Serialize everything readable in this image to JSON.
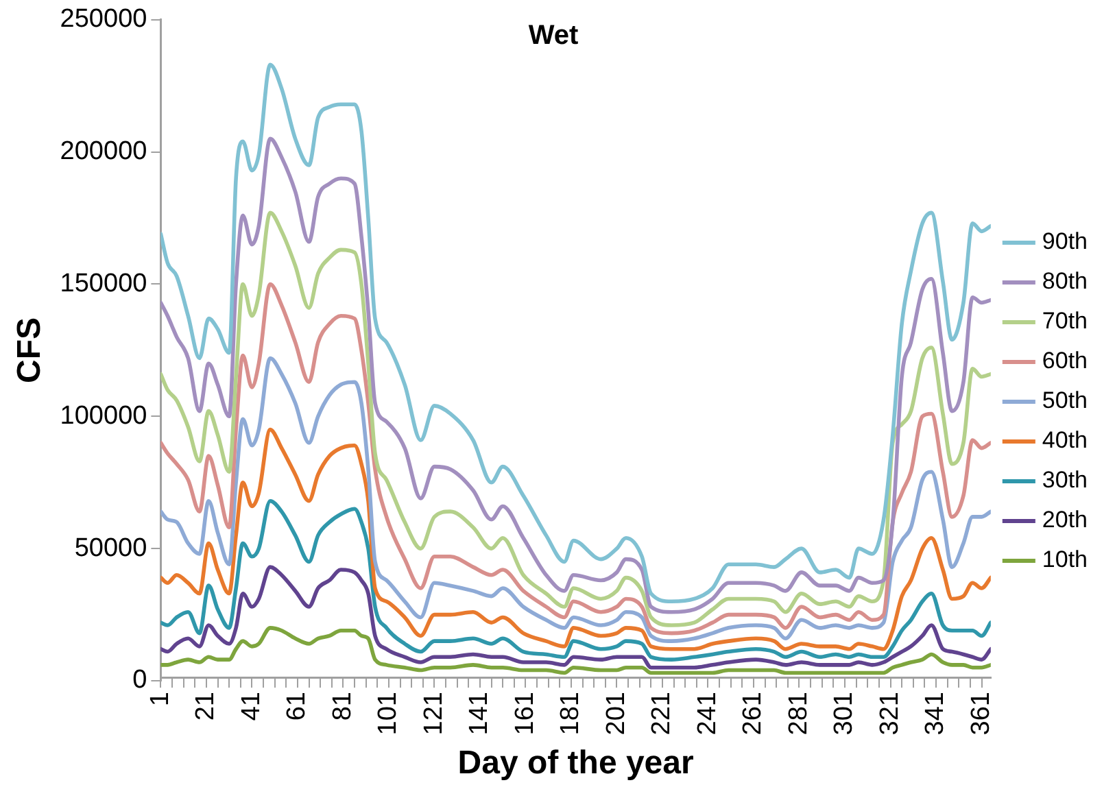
{
  "chart_data": {
    "type": "line",
    "title": "Wet",
    "xlabel": "Day of the year",
    "ylabel": "CFS",
    "x": [
      1,
      4,
      8,
      13,
      18,
      22,
      26,
      31,
      34,
      37,
      41,
      44,
      49,
      54,
      60,
      66,
      70,
      75,
      80,
      86,
      89,
      92,
      95,
      100,
      108,
      115,
      121,
      128,
      138,
      146,
      151,
      160,
      170,
      178,
      182,
      194,
      201,
      205,
      212,
      216,
      225,
      235,
      243,
      250,
      262,
      270,
      275,
      282,
      290,
      297,
      303,
      307,
      313,
      318,
      322,
      326,
      330,
      335,
      339,
      344,
      348,
      353,
      357,
      361,
      365
    ],
    "xlim": [
      1,
      365
    ],
    "xticks": [
      1,
      {
        "value": 6,
        "label": null
      },
      {
        "value": 11,
        "label": null
      },
      {
        "value": 16,
        "label": null
      },
      21,
      {
        "value": 26,
        "label": null
      },
      {
        "value": 31,
        "label": null
      },
      {
        "value": 36,
        "label": null
      },
      41,
      {
        "value": 46,
        "label": null
      },
      {
        "value": 51,
        "label": null
      },
      {
        "value": 56,
        "label": null
      },
      61,
      {
        "value": 66,
        "label": null
      },
      {
        "value": 71,
        "label": null
      },
      {
        "value": 76,
        "label": null
      },
      81,
      {
        "value": 86,
        "label": null
      },
      {
        "value": 91,
        "label": null
      },
      {
        "value": 96,
        "label": null
      },
      101,
      {
        "value": 106,
        "label": null
      },
      {
        "value": 111,
        "label": null
      },
      {
        "value": 116,
        "label": null
      },
      121,
      {
        "value": 126,
        "label": null
      },
      {
        "value": 131,
        "label": null
      },
      {
        "value": 136,
        "label": null
      },
      141,
      {
        "value": 146,
        "label": null
      },
      {
        "value": 151,
        "label": null
      },
      {
        "value": 156,
        "label": null
      },
      161,
      {
        "value": 166,
        "label": null
      },
      {
        "value": 171,
        "label": null
      },
      {
        "value": 176,
        "label": null
      },
      181,
      {
        "value": 186,
        "label": null
      },
      {
        "value": 191,
        "label": null
      },
      {
        "value": 196,
        "label": null
      },
      201,
      {
        "value": 206,
        "label": null
      },
      {
        "value": 211,
        "label": null
      },
      {
        "value": 216,
        "label": null
      },
      221,
      {
        "value": 226,
        "label": null
      },
      {
        "value": 231,
        "label": null
      },
      {
        "value": 236,
        "label": null
      },
      241,
      {
        "value": 246,
        "label": null
      },
      {
        "value": 251,
        "label": null
      },
      {
        "value": 256,
        "label": null
      },
      261,
      {
        "value": 266,
        "label": null
      },
      {
        "value": 271,
        "label": null
      },
      {
        "value": 276,
        "label": null
      },
      281,
      {
        "value": 286,
        "label": null
      },
      {
        "value": 291,
        "label": null
      },
      {
        "value": 296,
        "label": null
      },
      301,
      {
        "value": 306,
        "label": null
      },
      {
        "value": 311,
        "label": null
      },
      {
        "value": 316,
        "label": null
      },
      321,
      {
        "value": 326,
        "label": null
      },
      {
        "value": 331,
        "label": null
      },
      {
        "value": 336,
        "label": null
      },
      341,
      {
        "value": 346,
        "label": null
      },
      {
        "value": 351,
        "label": null
      },
      {
        "value": 356,
        "label": null
      },
      361
    ],
    "ylim": [
      0,
      250000
    ],
    "yticks": [
      0,
      50000,
      100000,
      150000,
      200000,
      250000
    ],
    "grid": false,
    "legend": "right",
    "line_style": "solid",
    "series": [
      {
        "name": "90th",
        "color": "#80c1d3",
        "values": [
          169000,
          158000,
          153000,
          138000,
          122000,
          137000,
          133000,
          124000,
          190000,
          204000,
          193000,
          199000,
          233000,
          224000,
          205000,
          195000,
          213000,
          217000,
          218000,
          218000,
          208000,
          175000,
          137000,
          128000,
          112000,
          91000,
          104000,
          101000,
          91000,
          75000,
          81000,
          70000,
          55000,
          45000,
          53000,
          46000,
          50000,
          54000,
          47000,
          33000,
          30000,
          31000,
          35000,
          44000,
          44000,
          43000,
          46000,
          50000,
          41000,
          42000,
          39000,
          50000,
          48000,
          61000,
          93000,
          135000,
          155000,
          173000,
          177000,
          151000,
          129000,
          143000,
          173000,
          170000,
          172000
        ]
      },
      {
        "name": "80th",
        "color": "#a28fbf",
        "values": [
          143000,
          138000,
          130000,
          122000,
          102000,
          120000,
          112000,
          100000,
          150000,
          176000,
          165000,
          172000,
          205000,
          198000,
          185000,
          166000,
          183000,
          188000,
          190000,
          188000,
          168000,
          140000,
          105000,
          98000,
          88000,
          69000,
          81000,
          80000,
          72000,
          61000,
          66000,
          54000,
          40000,
          34000,
          40000,
          38000,
          41000,
          46000,
          42000,
          28000,
          26000,
          27000,
          31000,
          37000,
          37000,
          36000,
          34000,
          41000,
          36000,
          36000,
          34000,
          39000,
          37000,
          38000,
          60000,
          115000,
          128000,
          148000,
          152000,
          124000,
          102000,
          113000,
          145000,
          143000,
          144000
        ]
      },
      {
        "name": "70th",
        "color": "#b4d08a",
        "values": [
          116000,
          110000,
          106000,
          96000,
          83000,
          102000,
          93000,
          79000,
          115000,
          150000,
          138000,
          146000,
          177000,
          170000,
          157000,
          141000,
          154000,
          160000,
          163000,
          162000,
          150000,
          120000,
          86000,
          76000,
          60000,
          50000,
          62000,
          64000,
          58000,
          50000,
          54000,
          40000,
          33000,
          28000,
          35000,
          31000,
          34000,
          39000,
          34000,
          24000,
          21000,
          22000,
          27000,
          31000,
          31000,
          30000,
          26000,
          33000,
          29000,
          30000,
          28000,
          32000,
          30000,
          38000,
          90000,
          97000,
          102000,
          122000,
          126000,
          101000,
          82000,
          90000,
          118000,
          115000,
          116000
        ]
      },
      {
        "name": "60th",
        "color": "#d88f8c",
        "values": [
          90000,
          86000,
          82000,
          76000,
          64000,
          85000,
          74000,
          58000,
          95000,
          123000,
          111000,
          120000,
          150000,
          142000,
          128000,
          113000,
          128000,
          135000,
          138000,
          137000,
          125000,
          105000,
          80000,
          62000,
          46000,
          35000,
          47000,
          47000,
          43000,
          40000,
          42000,
          34000,
          28000,
          24000,
          30000,
          26000,
          28000,
          31000,
          28000,
          20000,
          18000,
          19000,
          22000,
          25000,
          25000,
          24000,
          20000,
          28000,
          24000,
          25000,
          23000,
          26000,
          23000,
          25000,
          60000,
          71000,
          79000,
          100000,
          101000,
          79000,
          62000,
          70000,
          91000,
          88000,
          90000
        ]
      },
      {
        "name": "50th",
        "color": "#8eaad6",
        "values": [
          64000,
          61000,
          60000,
          52000,
          48000,
          68000,
          56000,
          44000,
          75000,
          99000,
          89000,
          95000,
          122000,
          116000,
          105000,
          90000,
          100000,
          108000,
          112000,
          113000,
          105000,
          80000,
          45000,
          38000,
          30000,
          24000,
          37000,
          36000,
          34000,
          32000,
          35000,
          28000,
          23000,
          20000,
          24000,
          21000,
          23000,
          26000,
          24000,
          17000,
          15000,
          16000,
          18000,
          20000,
          21000,
          20000,
          16000,
          23000,
          20000,
          21000,
          20000,
          21000,
          20000,
          22000,
          45000,
          53000,
          58000,
          76000,
          79000,
          61000,
          43000,
          52000,
          62000,
          62000,
          64000
        ]
      },
      {
        "name": "40th",
        "color": "#e8792d",
        "values": [
          39000,
          37000,
          40000,
          37000,
          33000,
          52000,
          42000,
          33000,
          55000,
          75000,
          66000,
          71000,
          95000,
          88000,
          78000,
          68000,
          78000,
          85000,
          88000,
          89000,
          82000,
          68000,
          35000,
          30000,
          24000,
          17000,
          25000,
          25000,
          26000,
          22000,
          24000,
          18000,
          15000,
          13000,
          20000,
          17000,
          18000,
          20000,
          19000,
          13000,
          12000,
          12000,
          14000,
          15000,
          16000,
          15000,
          12000,
          14000,
          13000,
          13000,
          12000,
          14000,
          13000,
          12000,
          19000,
          32000,
          38000,
          50000,
          54000,
          42000,
          31000,
          32000,
          37000,
          35000,
          39000
        ]
      },
      {
        "name": "30th",
        "color": "#2f97ab",
        "values": [
          22000,
          21000,
          24000,
          26000,
          18000,
          36000,
          27000,
          20000,
          35000,
          52000,
          47000,
          50000,
          68000,
          64000,
          55000,
          45000,
          55000,
          60000,
          63000,
          65000,
          60000,
          50000,
          28000,
          20000,
          14000,
          11000,
          15000,
          15000,
          16000,
          14000,
          16000,
          11000,
          10000,
          9000,
          15000,
          12000,
          13000,
          15000,
          14000,
          9000,
          8000,
          9000,
          10000,
          11000,
          12000,
          11000,
          9000,
          11000,
          9000,
          10000,
          9000,
          10000,
          9000,
          9000,
          13000,
          19000,
          23000,
          30000,
          33000,
          21000,
          19000,
          19000,
          19000,
          17000,
          22000
        ]
      },
      {
        "name": "20th",
        "color": "#60438f",
        "values": [
          12000,
          11000,
          14000,
          16000,
          13000,
          21000,
          17000,
          14000,
          20000,
          33000,
          28000,
          31000,
          43000,
          40000,
          34000,
          28000,
          35000,
          38000,
          42000,
          41000,
          38000,
          33000,
          17000,
          12000,
          9000,
          7000,
          9000,
          9000,
          10000,
          9000,
          9000,
          7000,
          7000,
          6000,
          9000,
          8000,
          9000,
          9000,
          9000,
          5000,
          5000,
          5000,
          6000,
          7000,
          8000,
          7000,
          6000,
          7000,
          6000,
          6000,
          6000,
          7000,
          6000,
          7000,
          9000,
          11000,
          13000,
          17000,
          21000,
          12000,
          11000,
          10000,
          9000,
          8000,
          12000
        ]
      },
      {
        "name": "10th",
        "color": "#7ea53d",
        "values": [
          6000,
          6000,
          7000,
          8000,
          7000,
          9000,
          8000,
          8000,
          12000,
          15000,
          13000,
          14000,
          20000,
          19000,
          16000,
          14000,
          16000,
          17000,
          19000,
          19000,
          17000,
          16000,
          8000,
          6000,
          5000,
          4000,
          5000,
          5000,
          6000,
          5000,
          5000,
          4000,
          4000,
          3000,
          5000,
          4000,
          4000,
          5000,
          5000,
          3000,
          3000,
          3000,
          3000,
          4000,
          4000,
          4000,
          3000,
          3000,
          3000,
          3000,
          3000,
          3000,
          3000,
          3000,
          5000,
          6000,
          7000,
          8000,
          10000,
          7000,
          6000,
          6000,
          5000,
          5000,
          6000
        ]
      }
    ]
  }
}
